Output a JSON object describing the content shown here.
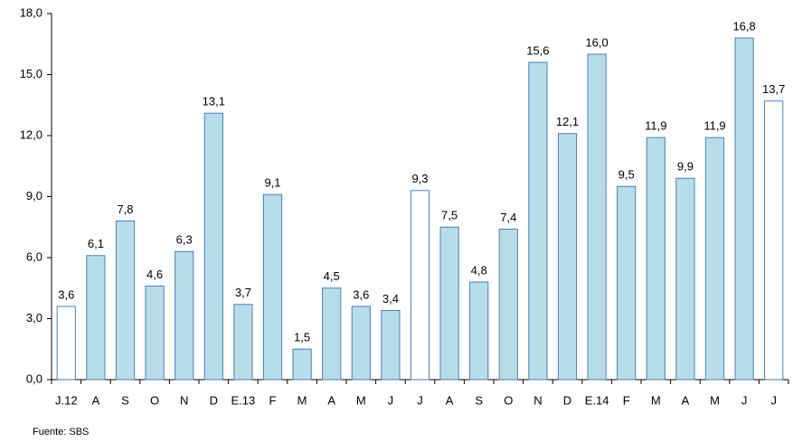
{
  "chart_data": {
    "type": "bar",
    "categories": [
      "J.12",
      "A",
      "S",
      "O",
      "N",
      "D",
      "E.13",
      "F",
      "M",
      "A",
      "M",
      "J",
      "J",
      "A",
      "S",
      "O",
      "N",
      "D",
      "E.14",
      "F",
      "M",
      "A",
      "M",
      "J",
      "J"
    ],
    "values": [
      3.6,
      6.1,
      7.8,
      4.6,
      6.3,
      13.1,
      3.7,
      9.1,
      1.5,
      4.5,
      3.6,
      3.4,
      9.3,
      7.5,
      4.8,
      7.4,
      15.6,
      12.1,
      16.0,
      9.5,
      11.9,
      9.9,
      11.9,
      16.8,
      13.7
    ],
    "value_labels": [
      "3,6",
      "6,1",
      "7,8",
      "4,6",
      "6,3",
      "13,1",
      "3,7",
      "9,1",
      "1,5",
      "4,5",
      "3,6",
      "3,4",
      "9,3",
      "7,5",
      "4,8",
      "7,4",
      "15,6",
      "12,1",
      "16,0",
      "9,5",
      "11,9",
      "9,9",
      "11,9",
      "16,8",
      "13,7"
    ],
    "colors": [
      "#ffffff",
      "#b7dde8",
      "#b7dde8",
      "#b7dde8",
      "#b7dde8",
      "#b7dde8",
      "#b7dde8",
      "#b7dde8",
      "#b7dde8",
      "#b7dde8",
      "#b7dde8",
      "#b7dde8",
      "#ffffff",
      "#b7dde8",
      "#b7dde8",
      "#b7dde8",
      "#b7dde8",
      "#b7dde8",
      "#b7dde8",
      "#b7dde8",
      "#b7dde8",
      "#b7dde8",
      "#b7dde8",
      "#b7dde8",
      "#ffffff"
    ],
    "edge_color": "#4a7ebb",
    "ylim": [
      0,
      18
    ],
    "yticks": [
      {
        "value": 0,
        "label": "0,0"
      },
      {
        "value": 3,
        "label": "3,0"
      },
      {
        "value": 6,
        "label": "6,0"
      },
      {
        "value": 9,
        "label": "9,0"
      },
      {
        "value": 12,
        "label": "12,0"
      },
      {
        "value": 15,
        "label": "15,0"
      },
      {
        "value": 18,
        "label": "18,0"
      }
    ],
    "grid": false,
    "source": "Fuente: SBS"
  }
}
